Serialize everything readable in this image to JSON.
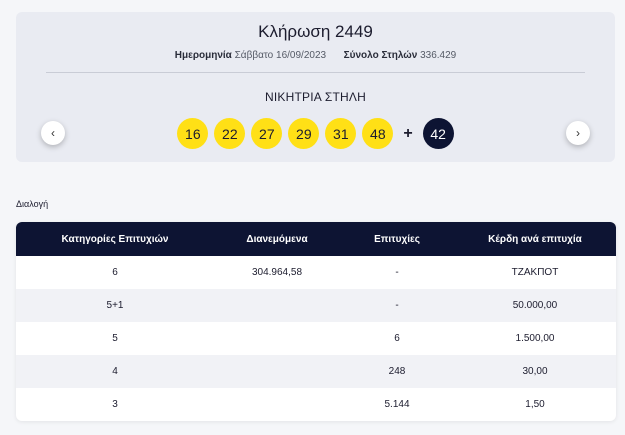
{
  "draw": {
    "title": "Κλήρωση 2449",
    "date_label": "Ημερομηνία",
    "date_value": "Σάββατο 16/09/2023",
    "columns_label": "Σύνολο Στηλών",
    "columns_value": "336.429",
    "winning_label": "ΝΙΚΗΤΡΙΑ ΣΤΗΛΗ",
    "numbers": [
      "16",
      "22",
      "27",
      "29",
      "31",
      "48"
    ],
    "plus": "+",
    "joker": "42",
    "prev_icon": "‹",
    "next_icon": "›"
  },
  "section_label": "Διαλογή",
  "table": {
    "headers": [
      "Κατηγορίες Επιτυχιών",
      "Διανεμόμενα",
      "Επιτυχίες",
      "Κέρδη ανά επιτυχία"
    ],
    "rows": [
      [
        "6",
        "304.964,58",
        "-",
        "ΤΖΑΚΠΟΤ"
      ],
      [
        "5+1",
        "",
        "-",
        "50.000,00"
      ],
      [
        "5",
        "",
        "6",
        "1.500,00"
      ],
      [
        "4",
        "",
        "248",
        "30,00"
      ],
      [
        "3",
        "",
        "5.144",
        "1,50"
      ]
    ]
  },
  "colors": {
    "ball_yellow": "#ffe016",
    "joker_navy": "#0d1433",
    "header_navy": "#0d1433"
  },
  "icons": {
    "prev": "chevron-left-icon",
    "next": "chevron-right-icon"
  }
}
